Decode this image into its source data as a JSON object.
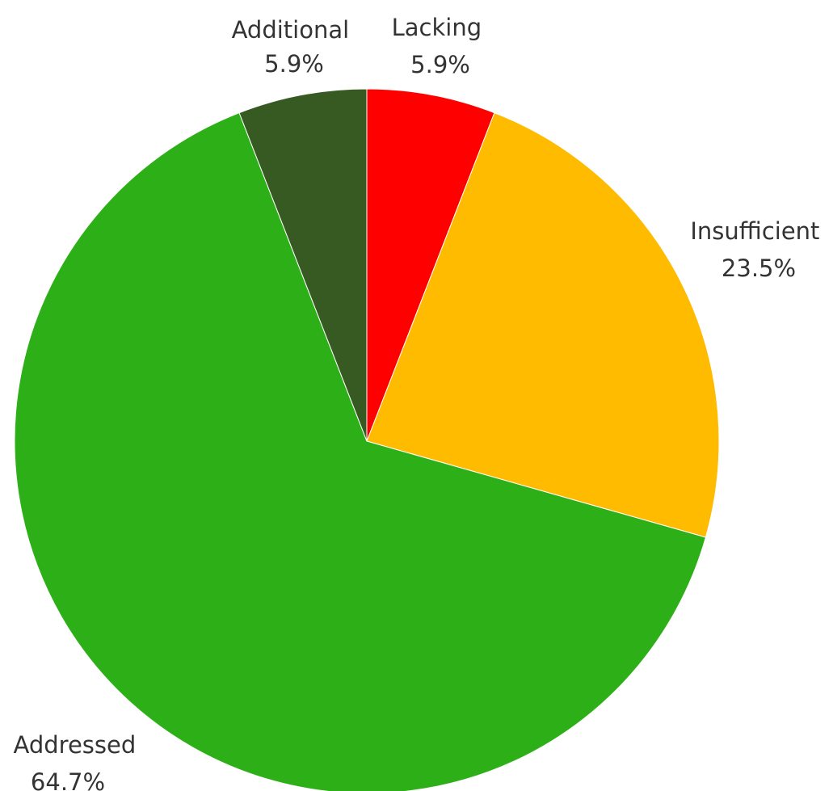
{
  "chart_data": {
    "type": "pie",
    "title": "",
    "start_angle_deg": 0,
    "direction": "clockwise",
    "slices": [
      {
        "label": "Lacking",
        "value": 5.9,
        "display": "5.9%",
        "color": "#ff0000"
      },
      {
        "label": "Insufficient",
        "value": 23.5,
        "display": "23.5%",
        "color": "#ffbb00"
      },
      {
        "label": "Addressed",
        "value": 64.7,
        "display": "64.7%",
        "color": "#2db017"
      },
      {
        "label": "Additional",
        "value": 5.9,
        "display": "5.9%",
        "color": "#375a23"
      }
    ]
  }
}
